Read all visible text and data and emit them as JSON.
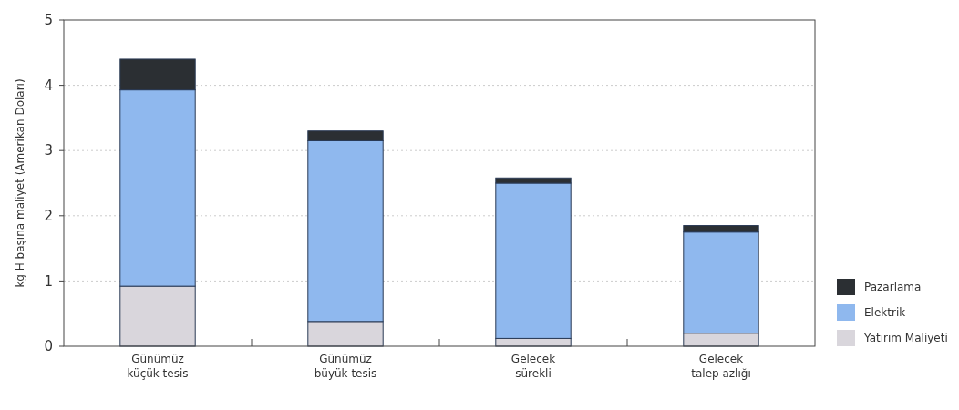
{
  "chart_data": {
    "type": "bar",
    "stacked": true,
    "ylabel": "kg H başına maliyet (Amerikan Doları)",
    "categories": [
      "Günümüz\nküçük tesis",
      "Günümüz\nbüyük tesis",
      "Gelecek\nsürekli",
      "Gelecek\ntalep azlığı"
    ],
    "series": [
      {
        "name": "Yatırım Maliyeti",
        "color": "#d9d6dc",
        "values": [
          0.92,
          0.38,
          0.12,
          0.2
        ]
      },
      {
        "name": "Elektrik",
        "color": "#8fb8ee",
        "values": [
          3.01,
          2.77,
          2.38,
          1.55
        ]
      },
      {
        "name": "Pazarlama",
        "color": "#2b2f33",
        "values": [
          0.47,
          0.15,
          0.08,
          0.1
        ]
      }
    ],
    "ylim": [
      0,
      5
    ],
    "yticks": [
      0,
      1,
      2,
      3,
      4,
      5
    ],
    "grid": "y",
    "legend": "right"
  }
}
